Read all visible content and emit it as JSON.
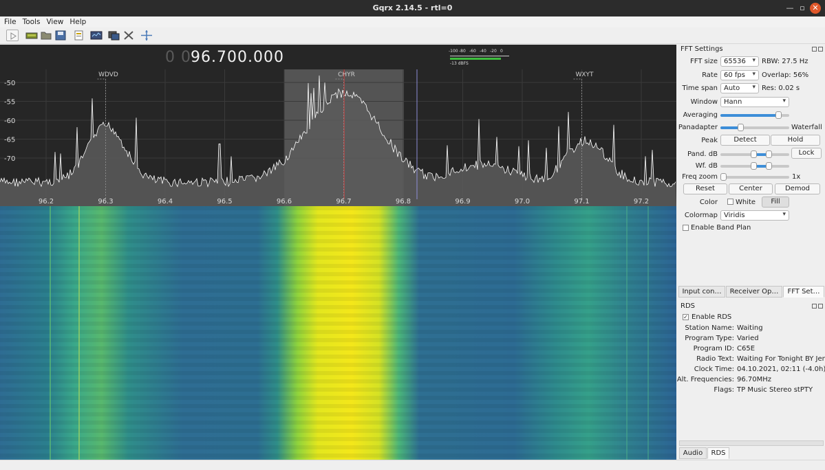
{
  "window": {
    "title": "Gqrx 2.14.5 - rtl=0"
  },
  "menu": [
    "File",
    "Tools",
    "View",
    "Help"
  ],
  "toolbar": {
    "icons": [
      "play-icon",
      "hardware-icon",
      "open-icon",
      "save-icon",
      "io-config-icon",
      "dsp-icon",
      "screenshot-icon",
      "tools-icon",
      "center-icon"
    ]
  },
  "frequency": {
    "leading_zeros": "0 0",
    "value": "96.700.000"
  },
  "meter": {
    "ticks": [
      "-100",
      "-80",
      "-60",
      "-40",
      "-20",
      "0"
    ],
    "reading": "-13 dBFS"
  },
  "plot": {
    "y_ticks": [
      "-50",
      "-55",
      "-60",
      "-65",
      "-70"
    ],
    "x_ticks": [
      "96.2",
      "96.3",
      "96.4",
      "96.5",
      "96.6",
      "96.7",
      "96.8",
      "96.9",
      "97.0",
      "97.1",
      "97.2"
    ],
    "stations": [
      "WDVD",
      "CHYR",
      "WXYT"
    ]
  },
  "fft": {
    "title": "FFT Settings",
    "fft_size_label": "FFT size",
    "fft_size": "65536",
    "rbw": "RBW: 27.5 Hz",
    "rate_label": "Rate",
    "rate": "60 fps",
    "overlap": "Overlap: 56%",
    "timespan_label": "Time span",
    "timespan": "Auto",
    "res": "Res: 0.02 s",
    "window_label": "Window",
    "window": "Hann",
    "averaging_label": "Averaging",
    "averaging": 0.85,
    "panadapter_label": "Panadapter",
    "waterfall_label": "Waterfall",
    "panadapter_split": 0.3,
    "peak_label": "Peak",
    "detect": "Detect",
    "hold": "Hold",
    "pand_db_label": "Pand. dB",
    "lock": "Lock",
    "wf_db_label": "Wf. dB",
    "freq_zoom_label": "Freq zoom",
    "freq_zoom_value": "1x",
    "reset": "Reset",
    "center": "Center",
    "demod": "Demod",
    "color_label": "Color",
    "white": "White",
    "fill": "Fill",
    "colormap_label": "Colormap",
    "colormap": "Viridis",
    "band_plan": "Enable Band Plan"
  },
  "tabs": [
    "Input con…",
    "Receiver Op…",
    "FFT Set…"
  ],
  "rds": {
    "title": "RDS",
    "enable": "Enable RDS",
    "rows": [
      {
        "label": "Station Name:",
        "value": "Waiting"
      },
      {
        "label": "Program Type:",
        "value": "Varied"
      },
      {
        "label": "Program ID:",
        "value": "C65E"
      },
      {
        "label": "Radio Text:",
        "value": "Waiting For Tonight BY Jenn"
      },
      {
        "label": "Clock Time:",
        "value": "04.10.2021, 02:11 (-4.0h)"
      },
      {
        "label": "Alt. Frequencies:",
        "value": "96.70MHz"
      },
      {
        "label": "Flags:",
        "value": "TP Music Stereo stPTY"
      }
    ]
  },
  "bottom_tabs": [
    "Audio",
    "RDS"
  ]
}
